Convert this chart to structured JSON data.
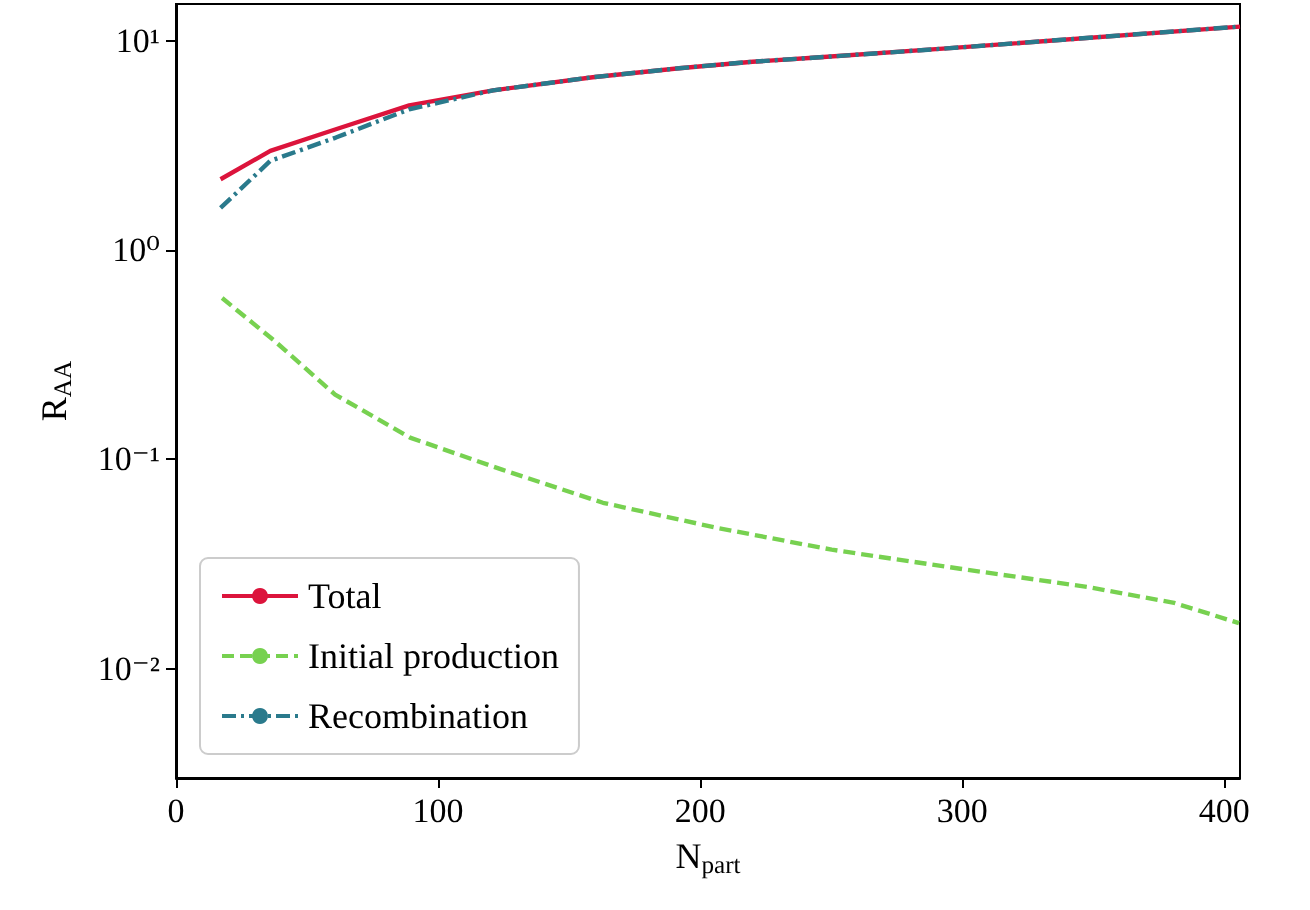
{
  "chart_data": {
    "type": "line",
    "xlabel": "N$_{part}$",
    "ylabel": "R$_{AA}$",
    "log": "y",
    "xlim": [
      0,
      406
    ],
    "xticks": [
      0,
      100,
      200,
      300,
      400
    ],
    "ylim": [
      0.003,
      15
    ],
    "yticks": [
      {
        "value": 10,
        "label": "10¹"
      },
      {
        "value": 1,
        "label": "10⁰"
      },
      {
        "value": 0.1,
        "label": "10⁻¹"
      },
      {
        "value": 0.01,
        "label": "10⁻²"
      }
    ],
    "legend": "bottom left",
    "grid": false,
    "series": [
      {
        "name": "Total",
        "color": "#dc143c",
        "line_style": "solid",
        "x": [
          17,
          36,
          61,
          89,
          121,
          159,
          192,
          220,
          243,
          294,
          406
        ],
        "values": [
          2.18,
          2.98,
          3.78,
          4.92,
          5.8,
          6.7,
          7.4,
          7.95,
          8.3,
          9.2,
          11.7
        ]
      },
      {
        "name": "Initial production",
        "color": "#77d150",
        "line_style": "dashed",
        "x": [
          17.6,
          37.4,
          60.7,
          89.3,
          124.7,
          162.9,
          206.6,
          250.2,
          299.2,
          348.3,
          380.9,
          405.6
        ],
        "values": [
          0.59,
          0.37,
          0.204,
          0.127,
          0.089,
          0.062,
          0.047,
          0.037,
          0.03,
          0.0245,
          0.0206,
          0.0165
        ]
      },
      {
        "name": "Recombination",
        "color": "#2a7a8c",
        "line_style": "dashdot",
        "x": [
          17,
          36,
          61,
          89,
          121,
          159,
          192,
          220,
          243,
          294,
          406
        ],
        "values": [
          1.59,
          2.67,
          3.45,
          4.71,
          5.8,
          6.7,
          7.4,
          7.95,
          8.3,
          9.2,
          11.7
        ]
      }
    ]
  }
}
